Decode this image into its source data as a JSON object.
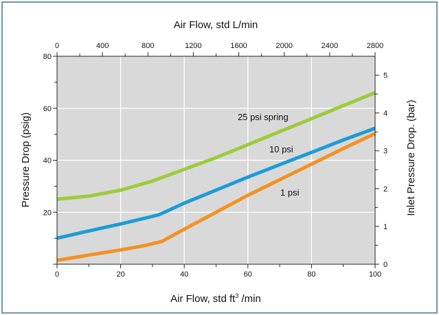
{
  "chart_data": {
    "type": "line",
    "title": "",
    "xlabel_bottom": "Air Flow, std ft",
    "xlabel_bottom_sup": "3",
    "xlabel_bottom_suffix": " /min",
    "xlabel_top": "Air Flow, std L/min",
    "ylabel_left": "Pressure Drop (psig)",
    "ylabel_right": "Inlet Pressure Drop. (bar)",
    "xlim": [
      0,
      100
    ],
    "ylim": [
      0,
      80
    ],
    "x2lim": [
      0,
      2800
    ],
    "y2lim": [
      0,
      5.5
    ],
    "x_ticks": [
      "0",
      "20",
      "40",
      "60",
      "80",
      "100"
    ],
    "y_ticks": [
      "20",
      "40",
      "60",
      "80"
    ],
    "x2_ticks": [
      "0",
      "400",
      "800",
      "1200",
      "1600",
      "2000",
      "2400",
      "2800"
    ],
    "y2_ticks": [
      "0",
      "1",
      "2",
      "3",
      "4",
      "5"
    ],
    "grid": true,
    "background": "#d9d9d9",
    "series": [
      {
        "name": "25 psi spring",
        "color": "#9ccb3c",
        "x": [
          0,
          10,
          20,
          30,
          40,
          50,
          60,
          70,
          80,
          90,
          100
        ],
        "y": [
          25,
          26.2,
          28.5,
          32,
          36.5,
          41,
          46,
          51,
          56,
          61,
          66
        ]
      },
      {
        "name": "10 psi",
        "color": "#1d9bd7",
        "x": [
          0,
          10,
          20,
          28,
          32,
          40,
          50,
          60,
          70,
          80,
          90,
          100
        ],
        "y": [
          10,
          12.8,
          15.5,
          17.8,
          19,
          23.5,
          28.5,
          33.5,
          38.3,
          43,
          47.8,
          52.3
        ]
      },
      {
        "name": "1 psi",
        "color": "#f39124",
        "x": [
          0,
          10,
          20,
          28,
          33,
          40,
          50,
          60,
          70,
          80,
          90,
          100
        ],
        "y": [
          1.5,
          3.5,
          5.5,
          7.3,
          8.8,
          13.5,
          20,
          26.5,
          32.5,
          38.5,
          44.5,
          50.3
        ]
      }
    ]
  }
}
